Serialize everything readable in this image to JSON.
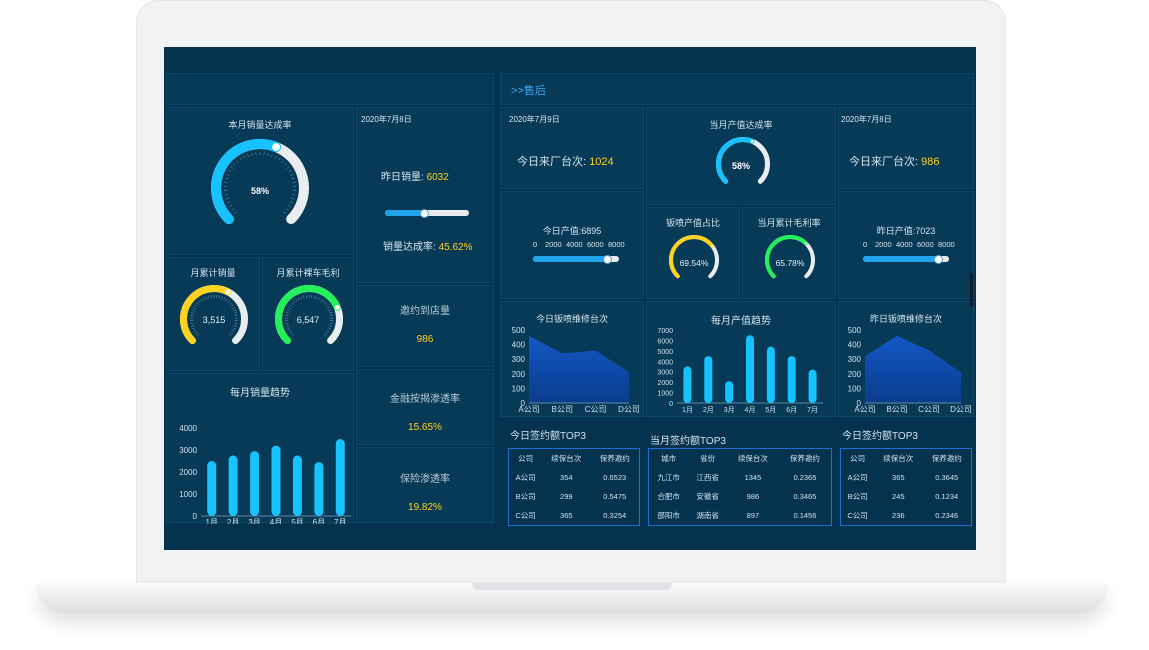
{
  "colors": {
    "screen_bg": "#05334f",
    "accent_blue": "#16c2ff",
    "yellow": "#ffd21f",
    "green": "#23f15a",
    "section_title": "#3fa9f5"
  },
  "header": {
    "section_after_sales": ">>售后"
  },
  "sales": {
    "monthly_rate": {
      "title": "本月销量达成率",
      "value_text": "58%",
      "value": 0.58
    },
    "date": "2020年7月8日",
    "yesterday_sales_label": "昨日销量:",
    "yesterday_sales_value": "6032",
    "sales_rate_label": "销量达成率:",
    "sales_rate_value": "45.62%",
    "sales_rate_slider": 0.46,
    "month_sales": {
      "title": "月累计销量",
      "value": "3,515",
      "fraction": 0.6
    },
    "month_profit": {
      "title": "月累计裸车毛利",
      "value": "6,547",
      "fraction": 0.75
    },
    "invite": {
      "label": "邀约到店量",
      "value": "986"
    },
    "finance": {
      "label": "金融按揭渗透率",
      "value": "15.65%"
    },
    "insurance": {
      "label": "保险渗透率",
      "value": "19.82%"
    }
  },
  "service": {
    "left": {
      "date": "2020年7月9日",
      "arrivals_label": "今日来厂台次:",
      "arrivals_value": "1024",
      "output_label": "今日产值:6895",
      "output_ticks": [
        "0",
        "2000",
        "4000",
        "6000",
        "8000"
      ],
      "output_value": 6895,
      "top3_title": "今日签约额TOP3"
    },
    "middle": {
      "rate_title": "当月产值达成率",
      "rate_value_text": "58%",
      "rate_value": 0.58,
      "paint_title": "钣喷产值占比",
      "paint_value": "69.54%",
      "paint_fraction": 0.6954,
      "margin_title": "当月累计毛利率",
      "margin_value": "65.78%",
      "margin_fraction": 0.6578,
      "top3_title": "当月签约额TOP3"
    },
    "right": {
      "date": "2020年7月8日",
      "arrivals_label": "今日来厂台次:",
      "arrivals_value": "986",
      "output_label": "昨日产值:7023",
      "output_ticks": [
        "0",
        "2000",
        "4000",
        "6000",
        "8000"
      ],
      "output_value": 7023,
      "top3_title": "今日签约额TOP3"
    }
  },
  "chart_data": [
    {
      "type": "bar",
      "title": "每月销量趋势",
      "categories": [
        "1月",
        "2月",
        "3月",
        "4月",
        "5月",
        "6月",
        "7月"
      ],
      "values": [
        2500,
        2750,
        2950,
        3200,
        2750,
        2450,
        3500
      ],
      "ylim": [
        0,
        4000
      ],
      "yticks": [
        "0",
        "1000",
        "2000",
        "3000",
        "4000"
      ]
    },
    {
      "type": "area",
      "title": "今日钣喷维修台次",
      "categories": [
        "A公司",
        "B公司",
        "C公司",
        "D公司"
      ],
      "values": [
        460,
        340,
        360,
        210
      ],
      "ylim": [
        0,
        500
      ],
      "yticks": [
        "0",
        "100",
        "200",
        "300",
        "400",
        "500"
      ]
    },
    {
      "type": "bar",
      "title": "每月产值趋势",
      "categories": [
        "1月",
        "2月",
        "3月",
        "4月",
        "5月",
        "6月",
        "7月"
      ],
      "values": [
        3500,
        4500,
        2100,
        6500,
        5400,
        4500,
        3200
      ],
      "ylim": [
        0,
        7000
      ],
      "yticks": [
        "0",
        "1000",
        "2000",
        "3000",
        "4000",
        "5000",
        "6000",
        "7000"
      ]
    },
    {
      "type": "area",
      "title": "昨日钣喷维修台次",
      "categories": [
        "A公司",
        "B公司",
        "C公司",
        "D公司"
      ],
      "values": [
        320,
        460,
        360,
        210
      ],
      "ylim": [
        0,
        500
      ],
      "yticks": [
        "0",
        "100",
        "200",
        "300",
        "400",
        "500"
      ]
    }
  ],
  "tables": {
    "left": {
      "headers": [
        "公司",
        "续保台次",
        "保养邀约"
      ],
      "rows": [
        [
          "A公司",
          "354",
          "0.6523"
        ],
        [
          "B公司",
          "299",
          "0.5475"
        ],
        [
          "C公司",
          "365",
          "0.3254"
        ]
      ]
    },
    "middle": {
      "headers": [
        "城市",
        "省份",
        "续保台次",
        "保养邀约"
      ],
      "rows": [
        [
          "九江市",
          "江西省",
          "1345",
          "0.2365"
        ],
        [
          "合肥市",
          "安徽省",
          "986",
          "0.3465"
        ],
        [
          "邵阳市",
          "湖南省",
          "897",
          "0.1456"
        ]
      ]
    },
    "right": {
      "headers": [
        "公司",
        "续保台次",
        "保养邀约"
      ],
      "rows": [
        [
          "A公司",
          "365",
          "0.3645"
        ],
        [
          "B公司",
          "245",
          "0.1234"
        ],
        [
          "C公司",
          "236",
          "0.2346"
        ]
      ]
    }
  }
}
